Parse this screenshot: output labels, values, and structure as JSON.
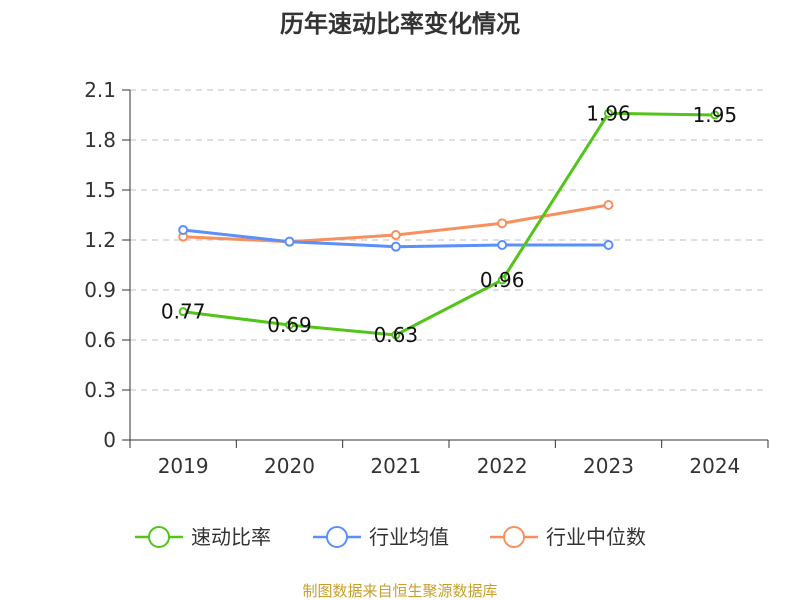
{
  "chart_data": {
    "type": "line",
    "title": "历年速动比率变化情况",
    "categories": [
      "2019",
      "2020",
      "2021",
      "2022",
      "2023",
      "2024"
    ],
    "ylim": [
      0,
      2.1
    ],
    "yticks": [
      "0",
      "0.3",
      "0.6",
      "0.9",
      "1.2",
      "1.5",
      "1.8",
      "2.1"
    ],
    "grid": true,
    "legend_position": "bottom",
    "series": [
      {
        "name": "速动比率",
        "color": "#52c41a",
        "values": [
          0.77,
          0.69,
          0.63,
          0.96,
          1.96,
          1.95
        ],
        "labels": [
          "0.77",
          "0.69",
          "0.63",
          "0.96",
          "1.96",
          "1.95"
        ]
      },
      {
        "name": "行业均值",
        "color": "#5b8ff9",
        "values": [
          1.26,
          1.19,
          1.16,
          1.17,
          1.17,
          null
        ]
      },
      {
        "name": "行业中位数",
        "color": "#f6905e",
        "values": [
          1.22,
          1.19,
          1.23,
          1.3,
          1.41,
          null
        ]
      }
    ],
    "source": "制图数据来自恒生聚源数据库"
  }
}
